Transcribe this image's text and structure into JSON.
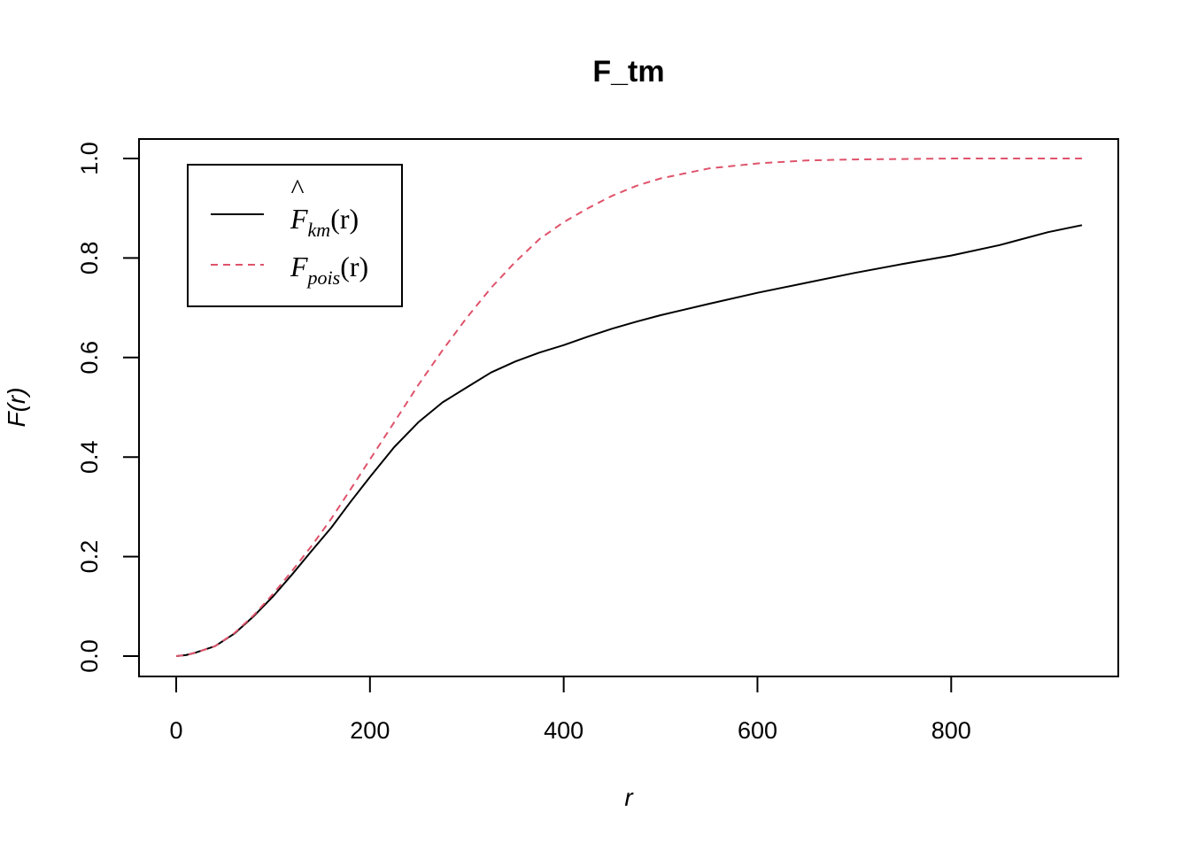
{
  "chart_data": {
    "type": "line",
    "title": "F_tm",
    "xlabel": "r",
    "ylabel": "F(r)",
    "xlim": [
      0,
      940
    ],
    "ylim": [
      0,
      1.0
    ],
    "x_ticks": [
      "0",
      "200",
      "400",
      "600",
      "800"
    ],
    "y_ticks": [
      "0.0",
      "0.2",
      "0.4",
      "0.6",
      "0.8",
      "1.0"
    ],
    "grid": false,
    "legend_position": "top-left",
    "series": [
      {
        "name": "F̂km(r)",
        "legend_main": "F",
        "legend_sub": "km",
        "legend_arg": "(r)",
        "color": "#000000",
        "dash": "solid",
        "x": [
          0,
          10,
          20,
          40,
          60,
          80,
          100,
          120,
          140,
          160,
          180,
          200,
          225,
          250,
          275,
          300,
          325,
          350,
          375,
          400,
          425,
          450,
          475,
          500,
          550,
          600,
          650,
          700,
          750,
          800,
          850,
          900,
          935
        ],
        "y": [
          0,
          0.002,
          0.007,
          0.02,
          0.045,
          0.08,
          0.12,
          0.165,
          0.212,
          0.258,
          0.31,
          0.36,
          0.42,
          0.47,
          0.51,
          0.54,
          0.57,
          0.592,
          0.61,
          0.625,
          0.642,
          0.658,
          0.672,
          0.685,
          0.708,
          0.73,
          0.75,
          0.77,
          0.788,
          0.805,
          0.826,
          0.852,
          0.866
        ]
      },
      {
        "name": "Fpois(r)",
        "legend_main": "F",
        "legend_sub": "pois",
        "legend_arg": "(r)",
        "color": "#DF536B",
        "dash": "dashed",
        "x": [
          0,
          10,
          20,
          40,
          60,
          80,
          100,
          120,
          140,
          160,
          180,
          200,
          225,
          250,
          275,
          300,
          325,
          350,
          375,
          400,
          425,
          450,
          475,
          500,
          525,
          550,
          600,
          650,
          700,
          750,
          800,
          850,
          900,
          935
        ],
        "y": [
          0,
          0.002,
          0.007,
          0.02,
          0.046,
          0.082,
          0.125,
          0.172,
          0.222,
          0.276,
          0.335,
          0.395,
          0.47,
          0.545,
          0.615,
          0.68,
          0.74,
          0.792,
          0.838,
          0.872,
          0.9,
          0.925,
          0.945,
          0.96,
          0.97,
          0.98,
          0.99,
          0.996,
          0.998,
          0.999,
          1.0,
          1.0,
          1.0,
          1.0
        ]
      }
    ]
  }
}
